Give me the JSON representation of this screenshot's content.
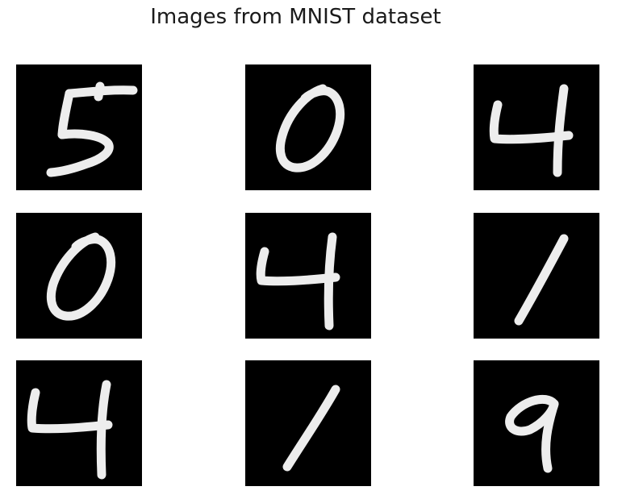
{
  "figure": {
    "title": "Images from MNIST dataset",
    "background": "#ffffff",
    "tile_color": "#000000",
    "digit_color": "#ededed"
  },
  "images": [
    {
      "digit": "5"
    },
    {
      "digit": "0"
    },
    {
      "digit": "4"
    },
    {
      "digit": "0"
    },
    {
      "digit": "4"
    },
    {
      "digit": "1"
    },
    {
      "digit": "4"
    },
    {
      "digit": "1"
    },
    {
      "digit": "9"
    }
  ]
}
